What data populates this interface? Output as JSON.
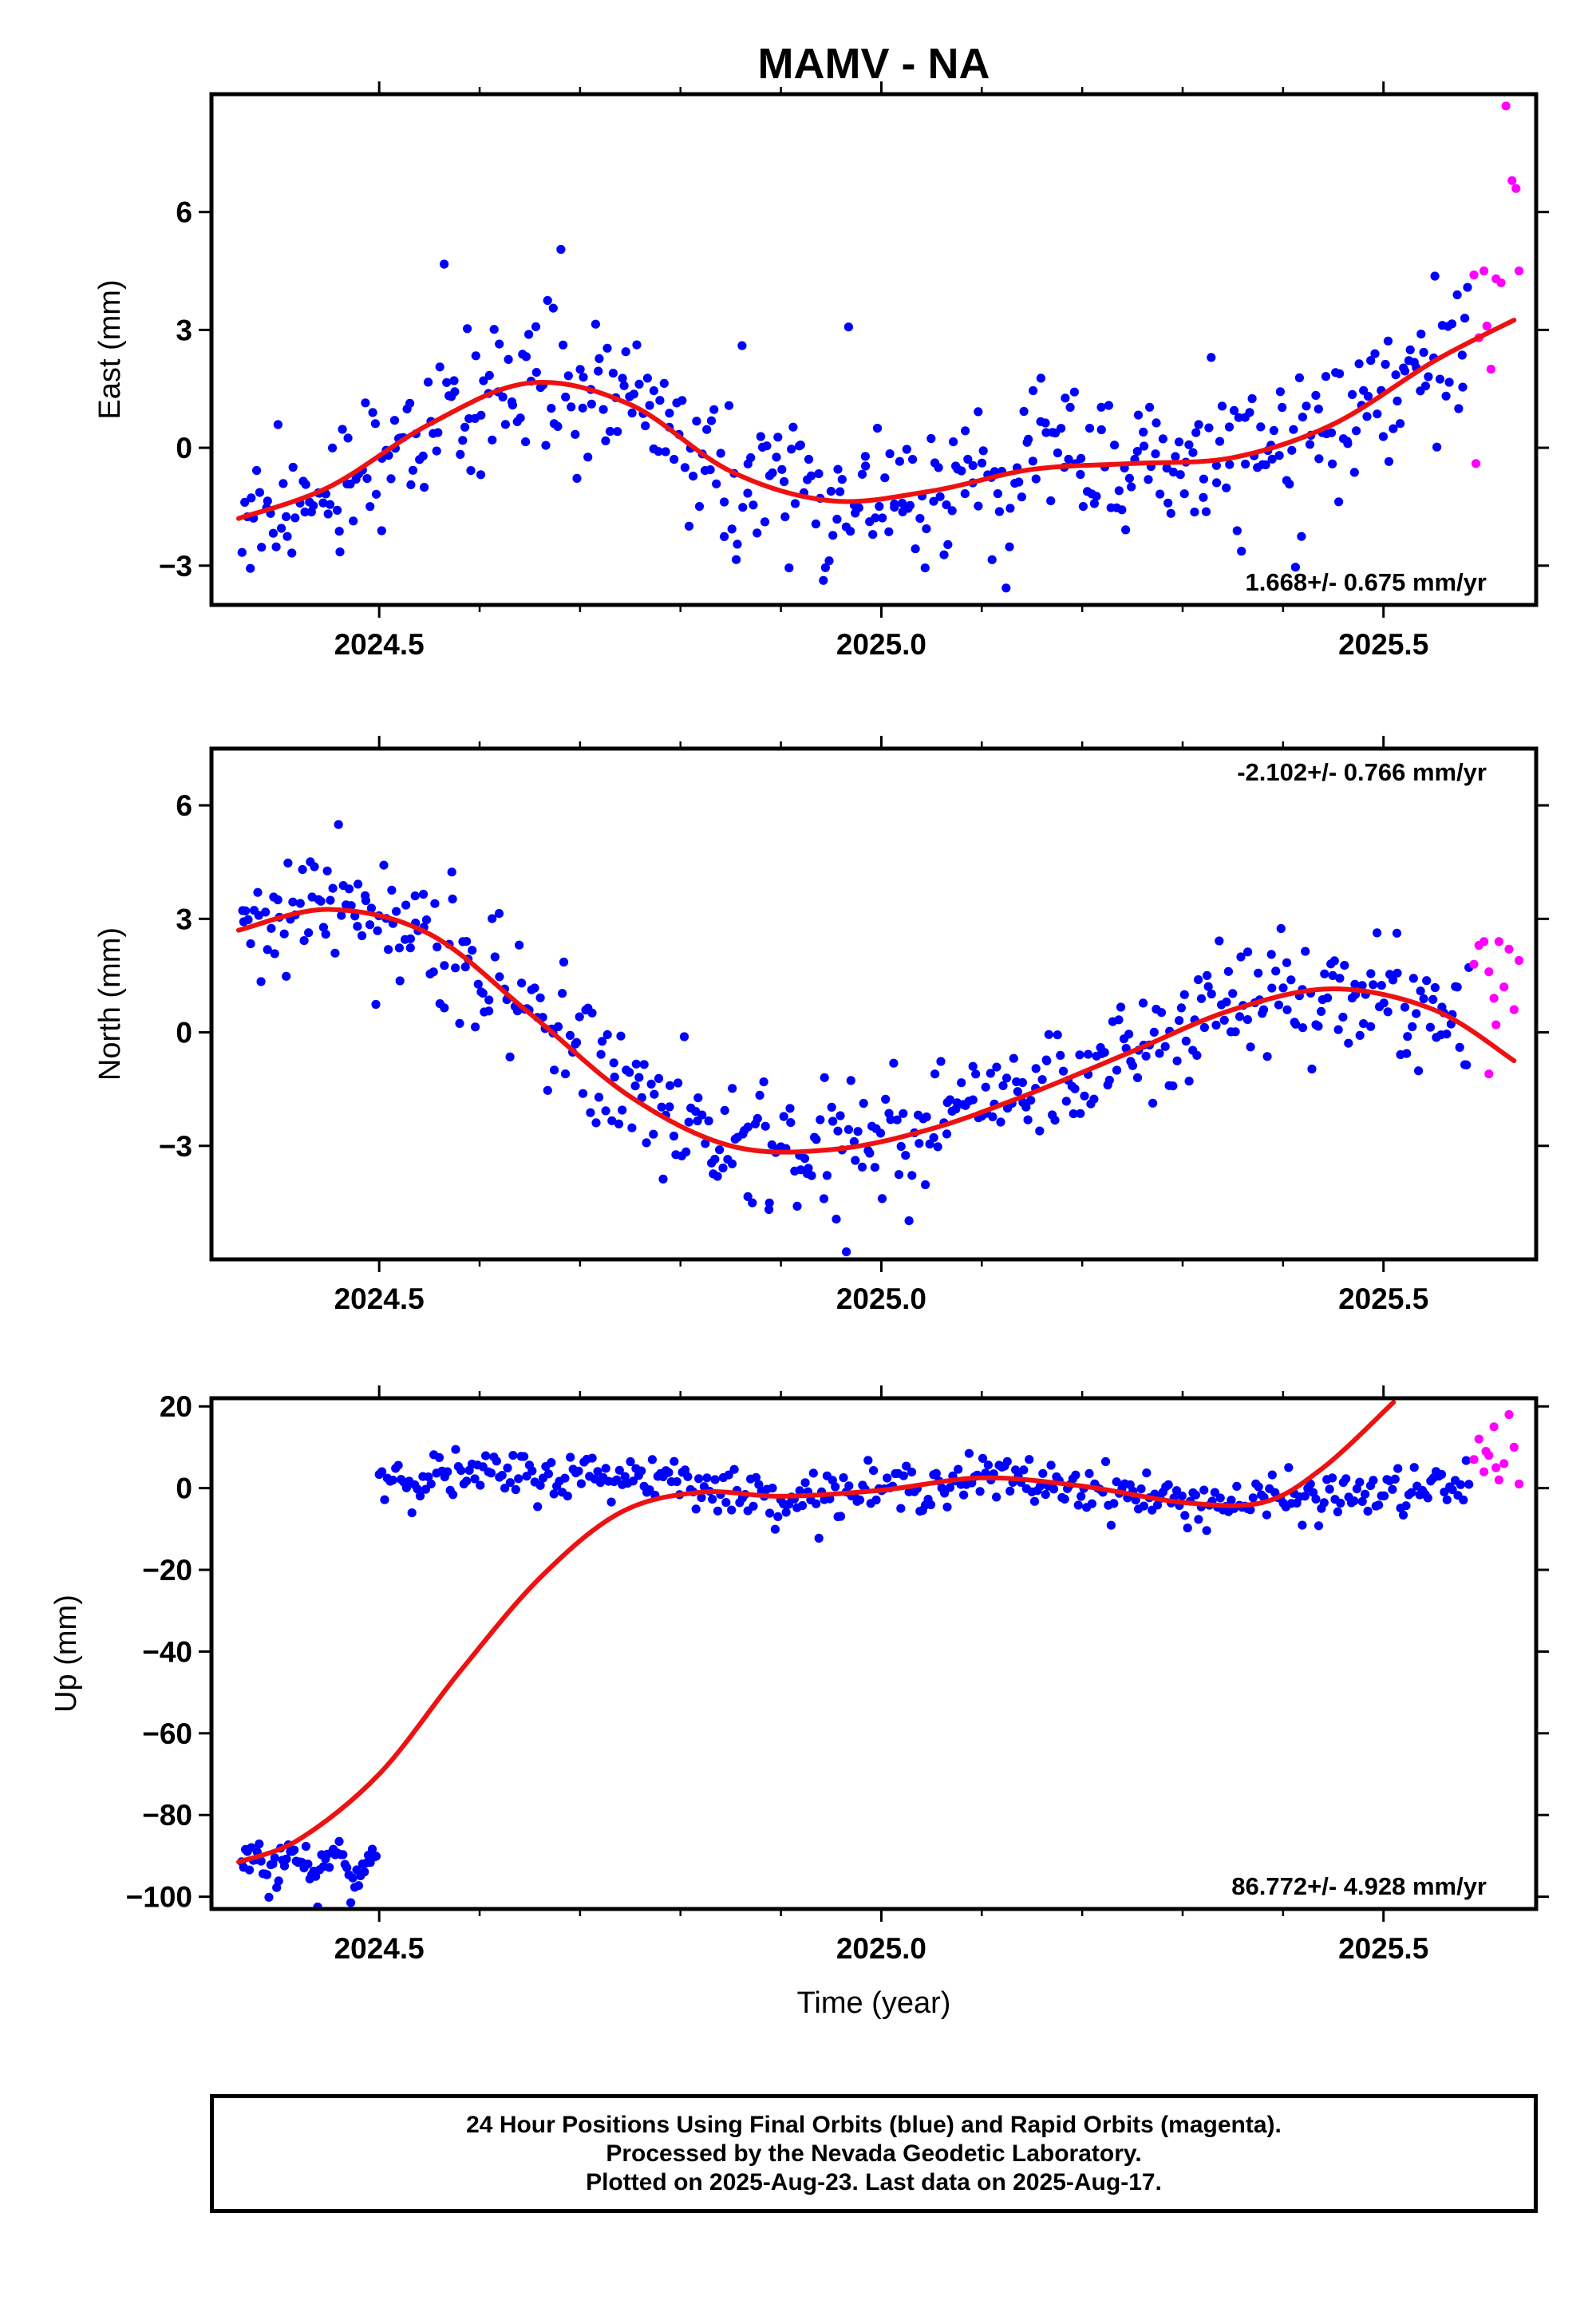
{
  "colors": {
    "final": "#0000ff",
    "rapid": "#ff00ff",
    "fit": "#ee1111",
    "axis": "#000000"
  },
  "chart_data": {
    "type": "scatter",
    "title": "MAMV - NA",
    "xlabel": "Time (year)",
    "x_tick_labels": [
      "2024.5",
      "2025.0",
      "2025.5"
    ],
    "xlim": [
      2024.333,
      2025.652
    ],
    "final_end": 2025.585,
    "rapid_start": 2025.59,
    "panels": [
      {
        "name": "east",
        "ylabel": "East (mm)",
        "ylim": [
          -4.0,
          9.0
        ],
        "yticks": [
          -3,
          0,
          3,
          6
        ],
        "ytick_labels": [
          "−3",
          "0",
          "3",
          "6"
        ],
        "rate": "1.668+/- 0.675 mm/yr",
        "rate_position": "bottom-right",
        "fit_curve": {
          "x": [
            2024.36,
            2024.45,
            2024.55,
            2024.65,
            2024.75,
            2024.85,
            2024.95,
            2025.05,
            2025.15,
            2025.25,
            2025.35,
            2025.45,
            2025.55,
            2025.63
          ],
          "y": [
            -1.8,
            -1.0,
            0.6,
            1.65,
            1.1,
            -0.6,
            -1.35,
            -1.1,
            -0.55,
            -0.4,
            -0.25,
            0.6,
            2.2,
            3.25
          ]
        },
        "final_scatter": 1.15,
        "rapid_points": {
          "x": [
            2025.59,
            2025.595,
            2025.6,
            2025.603,
            2025.607,
            2025.612,
            2025.617,
            2025.622,
            2025.628,
            2025.632,
            2025.635,
            2025.592
          ],
          "y": [
            4.4,
            2.8,
            4.5,
            3.1,
            2.0,
            4.3,
            4.2,
            8.7,
            6.8,
            6.6,
            4.5,
            -0.4
          ]
        }
      },
      {
        "name": "north",
        "ylabel": "North (mm)",
        "ylim": [
          -6.0,
          7.5
        ],
        "yticks": [
          -3,
          0,
          3,
          6
        ],
        "ytick_labels": [
          "−3",
          "0",
          "3",
          "6"
        ],
        "rate": "-2.102+/- 0.766 mm/yr",
        "rate_position": "top-right",
        "fit_curve": {
          "x": [
            2024.36,
            2024.45,
            2024.55,
            2024.65,
            2024.75,
            2024.85,
            2024.95,
            2025.05,
            2025.15,
            2025.25,
            2025.35,
            2025.45,
            2025.55,
            2025.63
          ],
          "y": [
            2.7,
            3.25,
            2.6,
            0.5,
            -1.7,
            -3.0,
            -3.1,
            -2.55,
            -1.6,
            -0.5,
            0.6,
            1.15,
            0.6,
            -0.75
          ]
        },
        "final_scatter": 1.1,
        "rapid_points": {
          "x": [
            2025.59,
            2025.595,
            2025.6,
            2025.605,
            2025.61,
            2025.615,
            2025.62,
            2025.625,
            2025.63,
            2025.635,
            2025.612,
            2025.605
          ],
          "y": [
            1.8,
            2.3,
            2.4,
            1.6,
            0.9,
            2.4,
            1.2,
            2.2,
            0.6,
            1.9,
            0.2,
            -1.1
          ]
        }
      },
      {
        "name": "up",
        "ylabel": "Up (mm)",
        "ylim": [
          -103.0,
          22.0
        ],
        "yticks": [
          -100,
          -80,
          -60,
          -40,
          -20,
          0,
          20
        ],
        "ytick_labels": [
          "−100",
          "−80",
          "−60",
          "−40",
          "−20",
          "0",
          "20"
        ],
        "rate": "86.772+/- 4.928 mm/yr",
        "rate_position": "bottom-right",
        "fit_curve": {
          "x": [
            2024.36,
            2024.42,
            2024.5,
            2024.58,
            2024.66,
            2024.74,
            2024.82,
            2024.9,
            2025.0,
            2025.1,
            2025.2,
            2025.3,
            2025.38,
            2025.44,
            2025.51
          ],
          "y": [
            -91.5,
            -86.0,
            -70.0,
            -45.0,
            -22.0,
            -6.0,
            -1.0,
            -2.0,
            -0.5,
            2.5,
            0.5,
            -3.5,
            -3.5,
            5.0,
            21.0
          ]
        },
        "early_segment": {
          "x_end": 2024.497,
          "center": -92.5,
          "scatter": 3.5
        },
        "late_segment": {
          "x_start": 2024.5,
          "x_end": 2025.585,
          "fit_start": 2024.82,
          "level": 3.0,
          "scatter": 3.2
        },
        "rapid_points": {
          "x": [
            2025.59,
            2025.595,
            2025.6,
            2025.605,
            2025.61,
            2025.615,
            2025.62,
            2025.625,
            2025.63,
            2025.635,
            2025.612,
            2025.602
          ],
          "y": [
            7.0,
            12.0,
            4.0,
            8.0,
            15.0,
            2.0,
            6.0,
            18.0,
            10.0,
            1.0,
            5.0,
            9.0
          ]
        }
      }
    ]
  },
  "footer": {
    "line1": "24 Hour Positions Using Final Orbits (blue) and Rapid Orbits (magenta).",
    "line2": "Processed by the Nevada Geodetic Laboratory.",
    "line3": "Plotted on 2025-Aug-23. Last data on 2025-Aug-17."
  }
}
